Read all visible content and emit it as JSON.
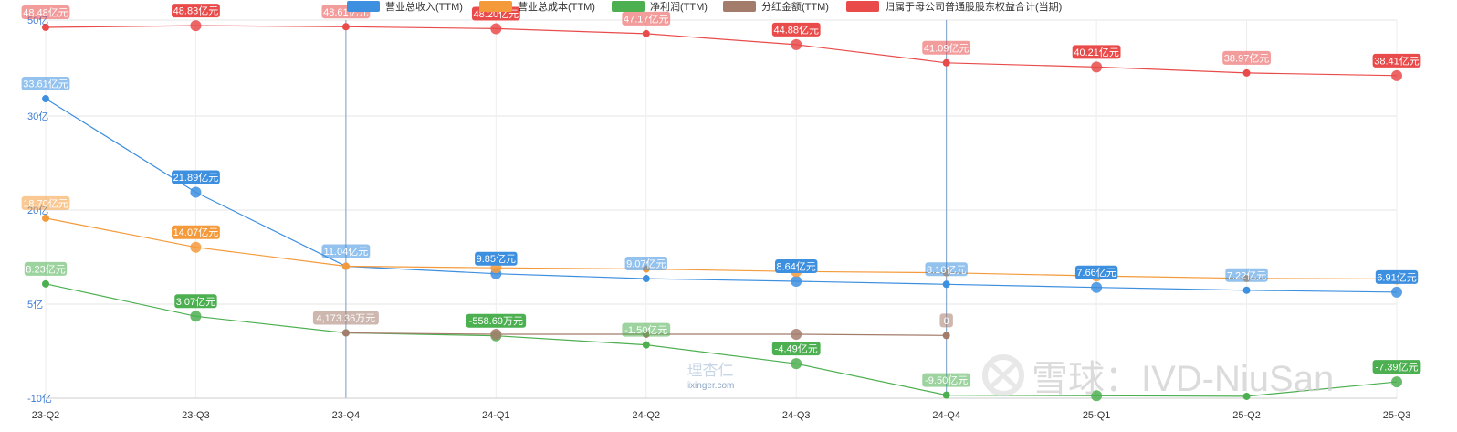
{
  "chart_data": {
    "type": "line",
    "categories": [
      "23-Q2",
      "23-Q3",
      "23-Q4",
      "24-Q1",
      "24-Q2",
      "24-Q3",
      "24-Q4",
      "25-Q1",
      "25-Q2",
      "25-Q3"
    ],
    "y_ticks": [
      {
        "value": 50,
        "label": "50亿"
      },
      {
        "value": 30,
        "label": "30亿"
      },
      {
        "value": 20,
        "label": "20亿"
      },
      {
        "value": 5,
        "label": "5亿"
      },
      {
        "value": -10,
        "label": "-10亿"
      }
    ],
    "series": [
      {
        "name": "营业总收入(TTM)",
        "color": "#3d8fe0",
        "values": [
          33.61,
          21.89,
          11.04,
          9.85,
          9.07,
          8.64,
          8.16,
          7.66,
          7.22,
          6.91
        ],
        "labels": [
          "33.61亿元",
          "21.89亿元",
          "11.04亿元",
          "9.85亿元",
          "9.07亿元",
          "8.64亿元",
          "8.16亿元",
          "7.66亿元",
          "7.22亿元",
          "6.91亿元"
        ]
      },
      {
        "name": "营业总成本(TTM)",
        "color": "#f59a3b",
        "values": [
          18.7,
          14.07,
          11.04,
          10.8,
          10.6,
          10.2,
          10.0,
          9.5,
          9.1,
          9.0
        ],
        "labels": [
          "18.70亿元",
          "14.07亿元",
          "",
          "",
          "",
          "",
          "",
          "",
          "",
          ""
        ]
      },
      {
        "name": "净利润(TTM)",
        "color": "#4caf50",
        "values": [
          8.23,
          3.07,
          0.4173,
          -0.0559,
          -1.5,
          -4.49,
          -9.5,
          -9.6,
          -9.7,
          -7.39
        ],
        "labels": [
          "8.23亿元",
          "3.07亿元",
          "",
          "-558.69万元",
          "-1.50亿元",
          "-4.49亿元",
          "-9.50亿元",
          "",
          "",
          "-7.39亿元"
        ]
      },
      {
        "name": "分红金额(TTM)",
        "color": "#a47c6c",
        "values": [
          null,
          null,
          0.4173,
          0.2,
          0.2,
          0.2,
          0,
          null,
          null,
          null
        ],
        "labels": [
          "",
          "",
          "4,173.36万元",
          "",
          "",
          "",
          "0",
          "",
          "",
          ""
        ]
      },
      {
        "name": "归属于母公司普通股股东权益合计(当期)",
        "color": "#e94b4b",
        "values": [
          48.48,
          48.83,
          48.61,
          48.2,
          47.17,
          44.88,
          41.09,
          40.21,
          38.97,
          38.41
        ],
        "labels": [
          "48.48亿元",
          "48.83亿元",
          "48.61亿元",
          "48.20亿元",
          "47.17亿元",
          "44.88亿元",
          "41.09亿元",
          "40.21亿元",
          "38.97亿元",
          "38.41亿元"
        ]
      }
    ],
    "grid": true,
    "legend_position": "top"
  },
  "watermarks": {
    "logo_text": "理杏仁",
    "logo_url_text": "lixinger.com",
    "snowball_text": "雪球：IVD-NiuSan"
  }
}
